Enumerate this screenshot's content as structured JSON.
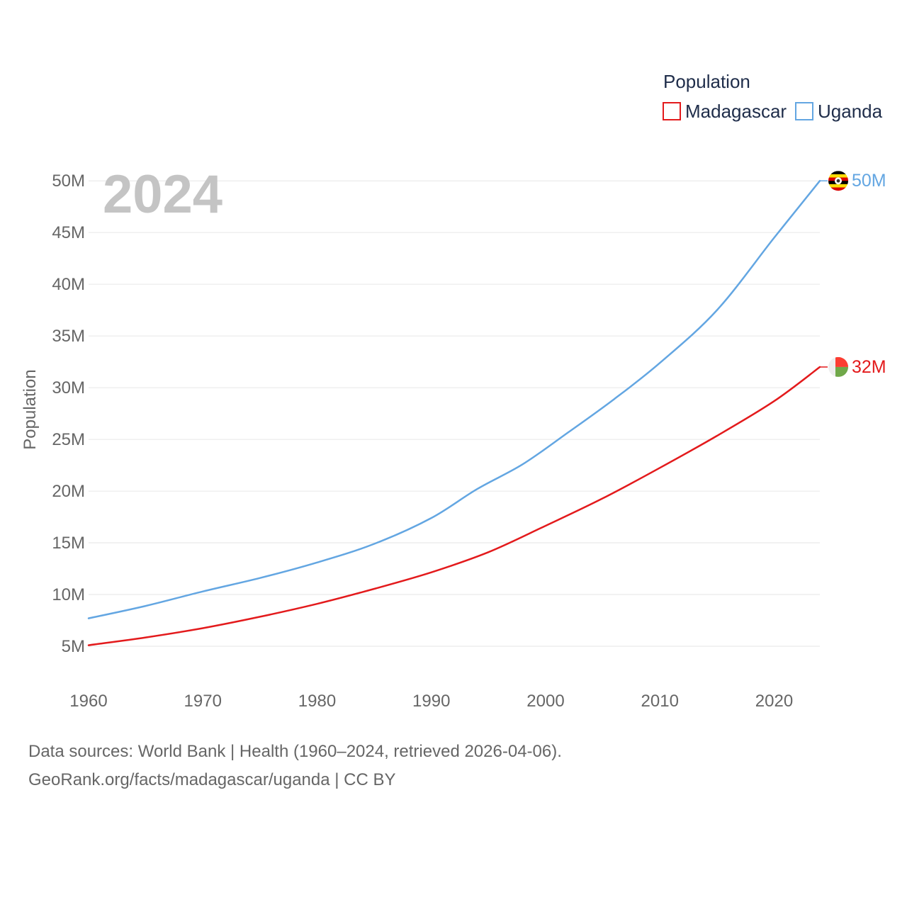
{
  "chart_data": {
    "type": "line",
    "ylabel": "Population",
    "xlabel": "",
    "year_label": "2024",
    "xlim": [
      1960,
      2024
    ],
    "ylim": [
      0,
      52000000
    ],
    "x_ticks": [
      1960,
      1970,
      1980,
      1990,
      2000,
      2010,
      2020
    ],
    "x_tick_labels": [
      "1960",
      "1970",
      "1980",
      "1990",
      "2000",
      "2010",
      "2020"
    ],
    "y_ticks": [
      5000000,
      10000000,
      15000000,
      20000000,
      25000000,
      30000000,
      35000000,
      40000000,
      45000000,
      50000000
    ],
    "y_tick_labels": [
      "5M",
      "10M",
      "15M",
      "20M",
      "25M",
      "30M",
      "35M",
      "40M",
      "45M",
      "50M"
    ],
    "grid": true,
    "legend": {
      "title": "Population",
      "position": "top-right",
      "entries": [
        "Madagascar",
        "Uganda"
      ]
    },
    "series": [
      {
        "name": "Madagascar",
        "color": "#e31a1c",
        "end_label": "32M",
        "flag": "madagascar-flag",
        "x": [
          1960,
          1965,
          1970,
          1975,
          1980,
          1985,
          1990,
          1995,
          2000,
          2005,
          2010,
          2015,
          2020,
          2024
        ],
        "values": [
          5100000,
          5850000,
          6750000,
          7850000,
          9100000,
          10550000,
          12150000,
          14100000,
          16650000,
          19300000,
          22250000,
          25350000,
          28700000,
          32000000
        ]
      },
      {
        "name": "Uganda",
        "color": "#63a6e2",
        "end_label": "50M",
        "flag": "uganda-flag",
        "x": [
          1960,
          1965,
          1970,
          1975,
          1980,
          1985,
          1990,
          1994,
          1998,
          2002,
          2006,
          2010,
          2015,
          2020,
          2024
        ],
        "values": [
          7700000,
          8900000,
          10300000,
          11600000,
          13100000,
          14900000,
          17400000,
          20200000,
          22600000,
          25700000,
          28900000,
          32400000,
          37500000,
          44500000,
          50000000
        ]
      }
    ]
  },
  "footer": {
    "line1": "Data sources: World Bank | Health (1960–2024, retrieved 2026-04-06).",
    "line2": "GeoRank.org/facts/madagascar/uganda | CC BY"
  }
}
